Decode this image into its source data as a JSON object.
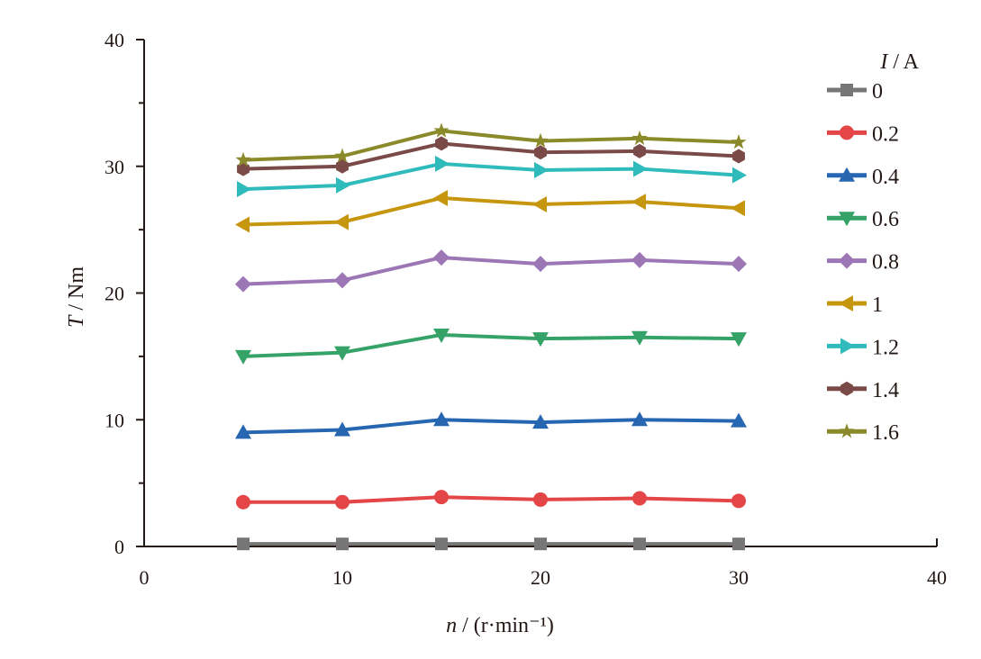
{
  "chart_data": {
    "type": "line",
    "title": "",
    "xlabel_var": "n",
    "xlabel_unit": " / (r·min⁻¹)",
    "ylabel_var": "T",
    "ylabel_unit": " / Nm",
    "xlim": [
      0,
      40
    ],
    "ylim": [
      0,
      40
    ],
    "xticks": [
      "0",
      "10",
      "20",
      "30",
      "40"
    ],
    "yticks": [
      "0",
      "10",
      "20",
      "30",
      "40"
    ],
    "grid": false,
    "legend_placement": "right",
    "legend_title_var": "I",
    "legend_title_unit": " / A",
    "x": [
      5,
      10,
      15,
      20,
      25,
      30
    ],
    "series": [
      {
        "name": "0",
        "color": "#767676",
        "marker": "square",
        "values": [
          0.2,
          0.2,
          0.2,
          0.2,
          0.2,
          0.2
        ]
      },
      {
        "name": "0.2",
        "color": "#e44546",
        "marker": "circle",
        "values": [
          3.5,
          3.5,
          3.9,
          3.7,
          3.8,
          3.6
        ]
      },
      {
        "name": "0.4",
        "color": "#2766b1",
        "marker": "triangle-up",
        "values": [
          9.0,
          9.2,
          10.0,
          9.8,
          10.0,
          9.9
        ]
      },
      {
        "name": "0.6",
        "color": "#35a368",
        "marker": "triangle-down",
        "values": [
          15.0,
          15.3,
          16.7,
          16.4,
          16.5,
          16.4
        ]
      },
      {
        "name": "0.8",
        "color": "#9c76b5",
        "marker": "diamond",
        "values": [
          20.7,
          21.0,
          22.8,
          22.3,
          22.6,
          22.3
        ]
      },
      {
        "name": "1",
        "color": "#c7960f",
        "marker": "triangle-left",
        "values": [
          25.4,
          25.6,
          27.5,
          27.0,
          27.2,
          26.7
        ]
      },
      {
        "name": "1.2",
        "color": "#2fbabb",
        "marker": "triangle-right",
        "values": [
          28.2,
          28.5,
          30.2,
          29.7,
          29.8,
          29.3
        ]
      },
      {
        "name": "1.4",
        "color": "#7a4a48",
        "marker": "hexagon",
        "values": [
          29.8,
          30.0,
          31.8,
          31.1,
          31.2,
          30.8
        ]
      },
      {
        "name": "1.6",
        "color": "#8a8a2a",
        "marker": "star",
        "values": [
          30.5,
          30.8,
          32.8,
          32.0,
          32.2,
          31.9
        ]
      }
    ]
  }
}
